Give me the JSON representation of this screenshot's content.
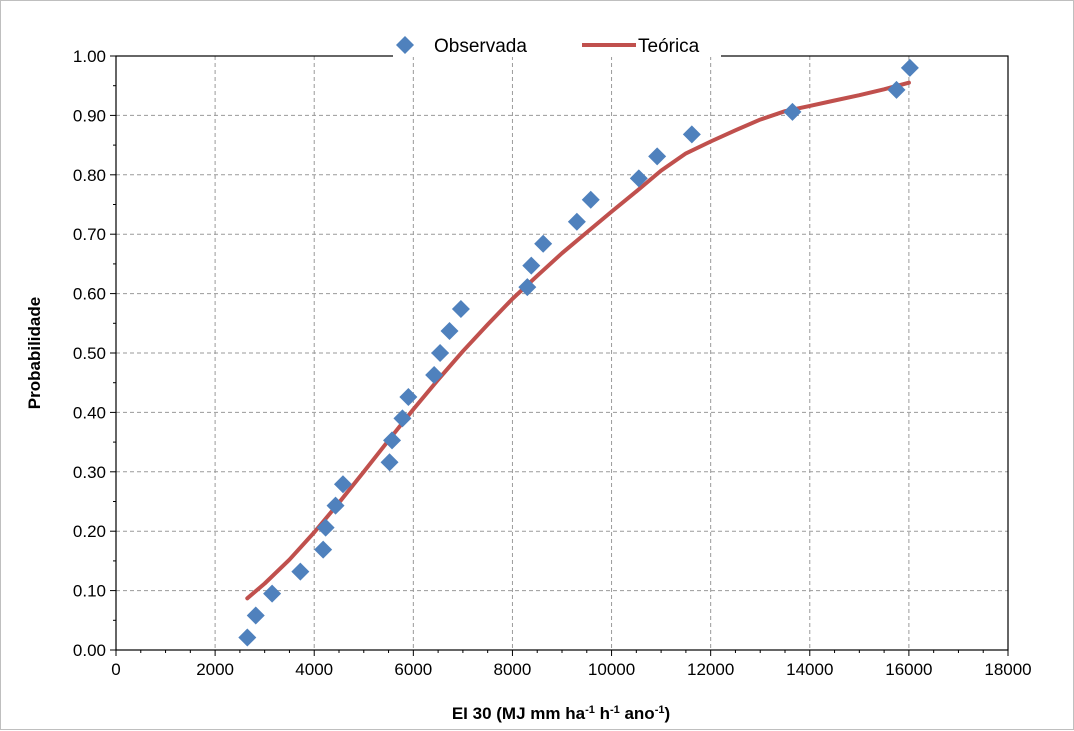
{
  "chart_data": {
    "type": "scatter",
    "xlabel": "EI 30 (MJ mm ha",
    "xlabel_parts": {
      "main": "EI 30 (MJ mm ha",
      "sup1": "-1",
      "mid1": " h",
      "sup2": "-1",
      "mid2": " ano",
      "sup3": "-1",
      "end": ")"
    },
    "ylabel": "Probabilidade",
    "xlim": [
      0,
      18000
    ],
    "ylim": [
      0.0,
      1.0
    ],
    "x_ticks": [
      0,
      2000,
      4000,
      6000,
      8000,
      10000,
      12000,
      14000,
      16000,
      18000
    ],
    "x_tick_labels": [
      "0",
      "2000",
      "4000",
      "6000",
      "8000",
      "10000",
      "12000",
      "14000",
      "16000",
      "18000"
    ],
    "y_ticks": [
      0.0,
      0.1,
      0.2,
      0.3,
      0.4,
      0.5,
      0.6,
      0.7,
      0.8,
      0.9,
      1.0
    ],
    "y_tick_labels": [
      "0.00",
      "0.10",
      "0.20",
      "0.30",
      "0.40",
      "0.50",
      "0.60",
      "0.70",
      "0.80",
      "0.90",
      "1.00"
    ],
    "grid": true,
    "legend_position": "top-center",
    "series": [
      {
        "name": "Observada",
        "kind": "scatter",
        "color": "#4f81bd",
        "marker": "diamond",
        "x": [
          2650,
          2820,
          3150,
          3720,
          4180,
          4230,
          4430,
          4580,
          5520,
          5570,
          5780,
          5900,
          6420,
          6540,
          6730,
          6960,
          8300,
          8380,
          8620,
          9300,
          9580,
          10550,
          10920,
          11620,
          13650,
          15750,
          16020
        ],
        "y": [
          0.021,
          0.058,
          0.095,
          0.132,
          0.169,
          0.206,
          0.243,
          0.279,
          0.316,
          0.353,
          0.39,
          0.426,
          0.463,
          0.5,
          0.537,
          0.574,
          0.611,
          0.647,
          0.684,
          0.721,
          0.758,
          0.794,
          0.831,
          0.868,
          0.906,
          0.943,
          0.98
        ]
      },
      {
        "name": "Teórica",
        "kind": "line",
        "color": "#c0504d",
        "x": [
          2650,
          3000,
          3500,
          4000,
          4500,
          5000,
          5500,
          6000,
          6500,
          7000,
          7500,
          8000,
          8500,
          9000,
          9500,
          10000,
          10500,
          11000,
          11500,
          12000,
          12500,
          13000,
          13500,
          14000,
          14500,
          15000,
          15500,
          16000
        ],
        "y": [
          0.087,
          0.112,
          0.152,
          0.198,
          0.248,
          0.3,
          0.353,
          0.405,
          0.455,
          0.503,
          0.548,
          0.591,
          0.63,
          0.668,
          0.703,
          0.738,
          0.772,
          0.807,
          0.836,
          0.856,
          0.875,
          0.893,
          0.907,
          0.916,
          0.925,
          0.934,
          0.944,
          0.955
        ]
      }
    ]
  }
}
